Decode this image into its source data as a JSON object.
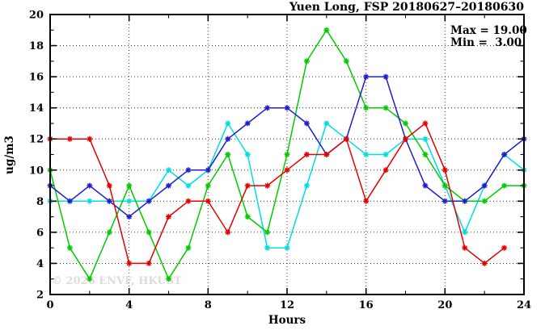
{
  "chart": {
    "title": "Yuen Long, FSP 20180627–20180630",
    "xlabel": "Hours",
    "ylabel": "ug/m3",
    "stats": {
      "max_label": "Max = 19.00",
      "min_label": "Min =  3.00"
    },
    "watermark": "© 2026 ENVF, HKUST"
  },
  "chart_data": {
    "type": "line",
    "title": "Yuen Long, FSP 20180627–20180630",
    "xlabel": "Hours",
    "ylabel": "ug/m3",
    "xlim": [
      0,
      24
    ],
    "ylim": [
      2,
      20
    ],
    "grid": true,
    "legend_position": "none",
    "x_major_ticks": [
      0,
      4,
      8,
      12,
      16,
      20,
      24
    ],
    "x_minor_ticks": [
      2,
      6,
      10,
      14,
      18,
      22
    ],
    "y_major_ticks": [
      2,
      4,
      6,
      8,
      10,
      12,
      14,
      16,
      18,
      20
    ],
    "y_minor_ticks": [
      3,
      5,
      7,
      9,
      11,
      13,
      15,
      17,
      19
    ],
    "grid_x": [
      4,
      8,
      12,
      16,
      20
    ],
    "grid_y": [
      4,
      6,
      8,
      10,
      12,
      14,
      16,
      18
    ],
    "x": [
      0,
      1,
      2,
      3,
      4,
      5,
      6,
      7,
      8,
      9,
      10,
      11,
      12,
      13,
      14,
      15,
      16,
      17,
      18,
      19,
      20,
      21,
      22,
      23,
      24
    ],
    "series": [
      {
        "name": "cyan",
        "color": "#00dede",
        "values": [
          8,
          8,
          8,
          8,
          8,
          8,
          10,
          9,
          10,
          13,
          11,
          5,
          5,
          9,
          13,
          12,
          11,
          11,
          12,
          12,
          9,
          6,
          9,
          11,
          10
        ]
      },
      {
        "name": "green",
        "color": "#00cc00",
        "values": [
          10,
          5,
          3,
          6,
          9,
          6,
          3,
          5,
          9,
          11,
          7,
          6,
          11,
          17,
          19,
          17,
          14,
          14,
          13,
          11,
          9,
          8,
          8,
          9,
          9
        ]
      },
      {
        "name": "blue",
        "color": "#1e1ecd",
        "values": [
          9,
          8,
          9,
          8,
          7,
          8,
          9,
          10,
          10,
          12,
          13,
          14,
          14,
          13,
          11,
          12,
          16,
          16,
          12,
          9,
          8,
          8,
          9,
          11,
          12
        ]
      },
      {
        "name": "red",
        "color": "#e60000",
        "values": [
          12,
          12,
          12,
          9,
          4,
          4,
          7,
          8,
          8,
          6,
          9,
          9,
          10,
          11,
          11,
          12,
          8,
          10,
          12,
          13,
          10,
          5,
          4,
          5,
          null
        ]
      }
    ],
    "annotations": {
      "max": 19.0,
      "min": 3.0
    }
  }
}
